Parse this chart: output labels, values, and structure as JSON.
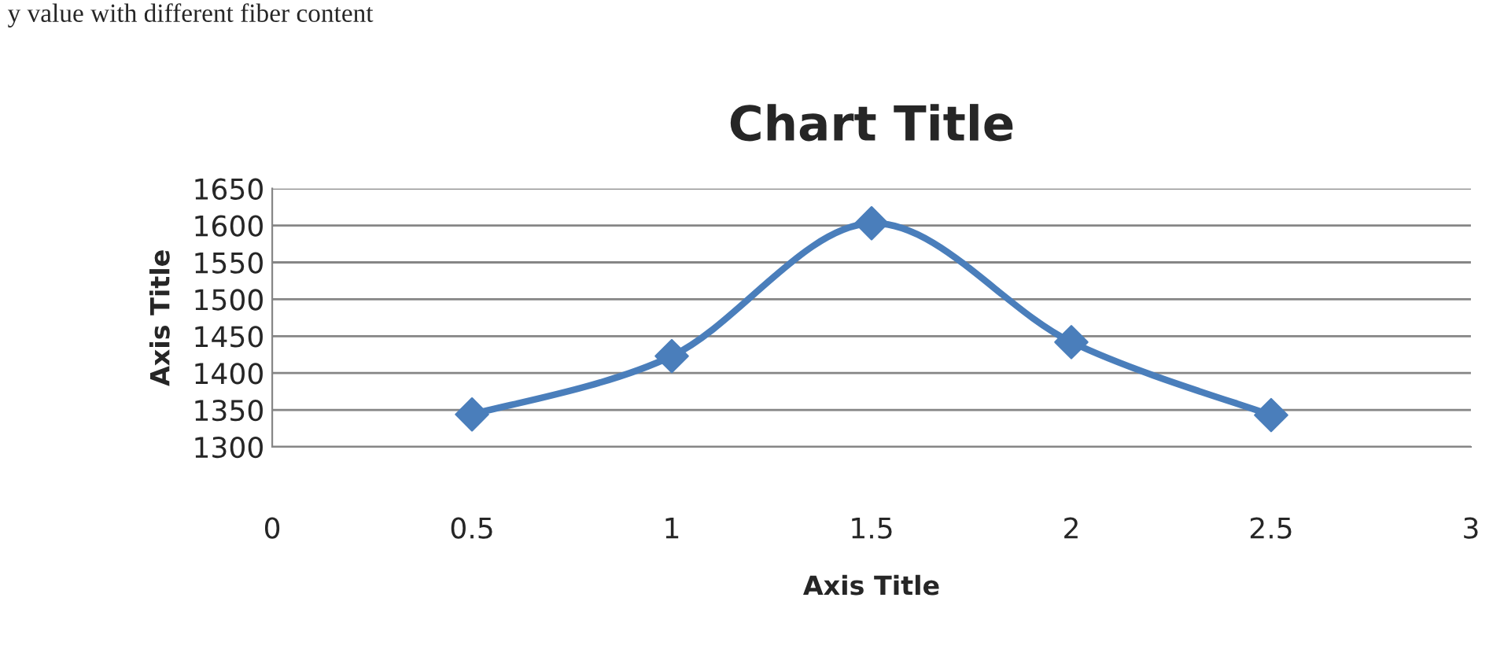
{
  "chart_data": {
    "type": "line",
    "title": "Chart Title",
    "xlabel": "Axis Title",
    "ylabel": "Axis Title",
    "annotations": [
      "y value with different fiber content"
    ],
    "x": [
      0.5,
      1,
      1.5,
      2,
      2.5
    ],
    "series": [
      {
        "color": "#4a7ebb",
        "values": [
          1344,
          1423,
          1603,
          1442,
          1343
        ]
      }
    ],
    "xlim": [
      0,
      3
    ],
    "xticks": [
      0,
      0.5,
      1,
      1.5,
      2,
      2.5,
      3
    ],
    "ylim": [
      1300,
      1650
    ],
    "yticks": [
      1300,
      1350,
      1400,
      1450,
      1500,
      1550,
      1600,
      1650
    ],
    "grid": "y",
    "legend": false,
    "marker": "diamond",
    "line_style": "solid"
  }
}
